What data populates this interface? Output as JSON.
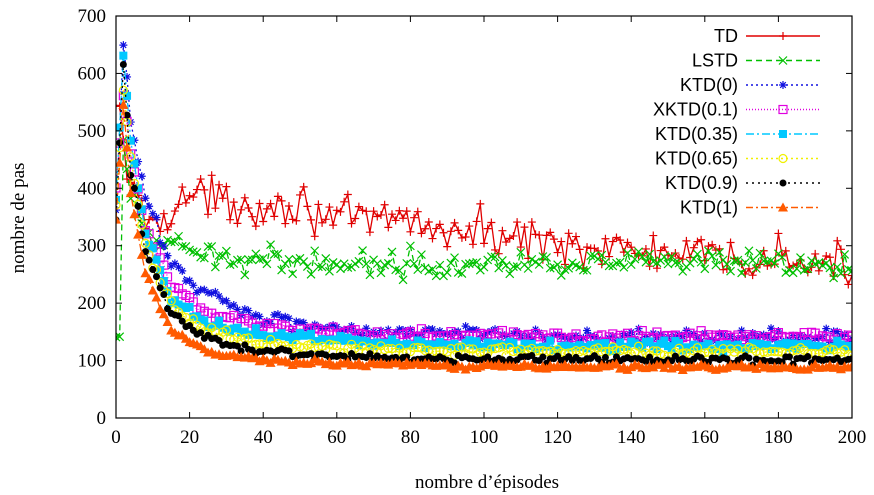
{
  "chart_data": {
    "type": "line",
    "title": "",
    "xlabel": "nombre d’épisodes",
    "ylabel": "nombre de pas",
    "xlim": [
      0,
      200
    ],
    "ylim": [
      0,
      700
    ],
    "x_ticks": [
      0,
      20,
      40,
      60,
      80,
      100,
      120,
      140,
      160,
      180,
      200
    ],
    "y_ticks": [
      0,
      100,
      200,
      300,
      400,
      500,
      600,
      700
    ],
    "grid": false,
    "legend_position": "top-right",
    "series": [
      {
        "name": "TD",
        "color": "#e00000",
        "dash": "",
        "marker": "plus",
        "description": "rapid drop from ~540 then noisy plateau around 360 decreasing to ~270 by episode 200",
        "anchor_points": [
          [
            1,
            540
          ],
          [
            3,
            430
          ],
          [
            6,
            370
          ],
          [
            10,
            340
          ],
          [
            20,
            390
          ],
          [
            30,
            375
          ],
          [
            40,
            370
          ],
          [
            50,
            375
          ],
          [
            60,
            345
          ],
          [
            70,
            340
          ],
          [
            80,
            350
          ],
          [
            90,
            320
          ],
          [
            100,
            325
          ],
          [
            110,
            310
          ],
          [
            120,
            310
          ],
          [
            130,
            295
          ],
          [
            140,
            290
          ],
          [
            150,
            285
          ],
          [
            160,
            280
          ],
          [
            170,
            270
          ],
          [
            180,
            280
          ],
          [
            190,
            265
          ],
          [
            200,
            262
          ]
        ],
        "noise": 35
      },
      {
        "name": "LSTD",
        "color": "#00c000",
        "dash": "6,4",
        "marker": "x",
        "description": "starts ~140, jumps to ~500 then settles around 270",
        "anchor_points": [
          [
            1,
            140
          ],
          [
            2,
            480
          ],
          [
            3,
            420
          ],
          [
            6,
            350
          ],
          [
            10,
            310
          ],
          [
            20,
            285
          ],
          [
            30,
            280
          ],
          [
            40,
            275
          ],
          [
            60,
            270
          ],
          [
            80,
            270
          ],
          [
            100,
            270
          ],
          [
            120,
            272
          ],
          [
            140,
            270
          ],
          [
            160,
            268
          ],
          [
            180,
            265
          ],
          [
            200,
            262
          ]
        ],
        "noise": 22
      },
      {
        "name": "KTD(0)",
        "color": "#1010e0",
        "dash": "2,3",
        "marker": "star",
        "description": "peak ~650 at episode 2, decays to ~140",
        "anchor_points": [
          [
            0,
            360
          ],
          [
            2,
            650
          ],
          [
            4,
            520
          ],
          [
            8,
            380
          ],
          [
            15,
            270
          ],
          [
            25,
            215
          ],
          [
            40,
            175
          ],
          [
            60,
            155
          ],
          [
            80,
            148
          ],
          [
            100,
            145
          ],
          [
            130,
            142
          ],
          [
            160,
            142
          ],
          [
            200,
            140
          ]
        ],
        "noise": 14
      },
      {
        "name": "XKTD(0.1)",
        "color": "#e000e0",
        "dash": "1,2",
        "marker": "square",
        "description": "peak ~560, decays to ~140",
        "anchor_points": [
          [
            0,
            400
          ],
          [
            2,
            560
          ],
          [
            4,
            460
          ],
          [
            8,
            330
          ],
          [
            15,
            230
          ],
          [
            25,
            185
          ],
          [
            40,
            160
          ],
          [
            60,
            150
          ],
          [
            80,
            145
          ],
          [
            100,
            142
          ],
          [
            130,
            142
          ],
          [
            160,
            145
          ],
          [
            200,
            142
          ]
        ],
        "noise": 10
      },
      {
        "name": "KTD(0.35)",
        "color": "#00c8ff",
        "dash": "8,3,2,3",
        "marker": "filled-square",
        "description": "peak ~630, decays to ~125",
        "anchor_points": [
          [
            0,
            380
          ],
          [
            2,
            630
          ],
          [
            4,
            480
          ],
          [
            8,
            320
          ],
          [
            15,
            210
          ],
          [
            25,
            165
          ],
          [
            40,
            145
          ],
          [
            60,
            135
          ],
          [
            80,
            130
          ],
          [
            100,
            128
          ],
          [
            130,
            126
          ],
          [
            160,
            125
          ],
          [
            200,
            124
          ]
        ],
        "noise": 9
      },
      {
        "name": "KTD(0.65)",
        "color": "#f0f000",
        "dash": "2,3",
        "marker": "circle",
        "description": "peak ~570, decays to ~115",
        "anchor_points": [
          [
            0,
            370
          ],
          [
            2,
            570
          ],
          [
            4,
            450
          ],
          [
            8,
            300
          ],
          [
            15,
            195
          ],
          [
            25,
            150
          ],
          [
            40,
            130
          ],
          [
            60,
            122
          ],
          [
            80,
            118
          ],
          [
            100,
            117
          ],
          [
            130,
            116
          ],
          [
            160,
            115
          ],
          [
            200,
            114
          ]
        ],
        "noise": 8
      },
      {
        "name": "KTD(0.9)",
        "color": "#000000",
        "dash": "2,4",
        "marker": "filled-circle",
        "description": "peak ~615, decays to ~100",
        "anchor_points": [
          [
            0,
            345
          ],
          [
            2,
            615
          ],
          [
            4,
            430
          ],
          [
            8,
            290
          ],
          [
            15,
            180
          ],
          [
            25,
            135
          ],
          [
            40,
            117
          ],
          [
            60,
            108
          ],
          [
            80,
            105
          ],
          [
            100,
            103
          ],
          [
            130,
            102
          ],
          [
            160,
            101
          ],
          [
            200,
            100
          ]
        ],
        "noise": 7
      },
      {
        "name": "KTD(1)",
        "color": "#ff5a00",
        "dash": "7,3,2,3",
        "marker": "filled-triangle",
        "description": "peak ~545, decays fastest to ~88",
        "anchor_points": [
          [
            0,
            345
          ],
          [
            2,
            545
          ],
          [
            4,
            390
          ],
          [
            8,
            250
          ],
          [
            15,
            150
          ],
          [
            25,
            115
          ],
          [
            40,
            100
          ],
          [
            60,
            95
          ],
          [
            80,
            93
          ],
          [
            100,
            91
          ],
          [
            130,
            90
          ],
          [
            160,
            89
          ],
          [
            200,
            88
          ]
        ],
        "noise": 5
      }
    ]
  }
}
